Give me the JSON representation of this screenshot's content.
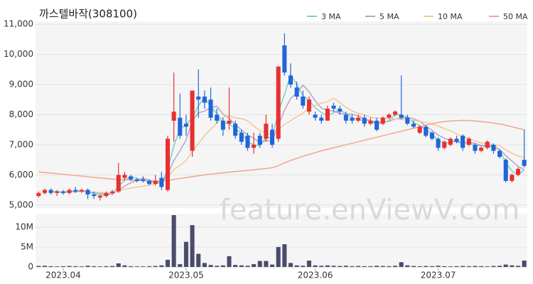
{
  "chart_data": [
    {
      "type": "candlestick",
      "title": "까스텔바작(308100)",
      "watermark": "feature.enViewV.com",
      "up_color": "#e8302f",
      "down_color": "#1f66d9",
      "grid": true,
      "categories": [
        null,
        null,
        null,
        null,
        null,
        null,
        null,
        null,
        null,
        null,
        null,
        null,
        null,
        null,
        null,
        null,
        null,
        null,
        null,
        null,
        null,
        null,
        null,
        null,
        null,
        null,
        null,
        null,
        null,
        null,
        null,
        null,
        null,
        null,
        null,
        null,
        null,
        null,
        null,
        null,
        null,
        null,
        null,
        null,
        null,
        null,
        null,
        null,
        null,
        null,
        null,
        null,
        null,
        null,
        null,
        null,
        null,
        null,
        null,
        null,
        null,
        null,
        null,
        null,
        null,
        null,
        null,
        null,
        null,
        null,
        null,
        null,
        null,
        null,
        null,
        null,
        null,
        null,
        null,
        null
      ],
      "open": [
        5300,
        5400,
        5500,
        5400,
        5450,
        5400,
        5500,
        5450,
        5500,
        5350,
        5250,
        5300,
        5400,
        5450,
        5900,
        5950,
        5850,
        5850,
        5800,
        5700,
        5900,
        5500,
        7800,
        7900,
        7700,
        6800,
        8600,
        8600,
        8500,
        8000,
        7800,
        7700,
        7700,
        7400,
        7300,
        6900,
        7300,
        7200,
        7500,
        7200,
        10300,
        9300,
        8900,
        8600,
        8100,
        8000,
        7900,
        7800,
        8300,
        8200,
        8000,
        7900,
        7800,
        7900,
        7700,
        7800,
        7700,
        7900,
        8000,
        8000,
        7900,
        7700,
        7400,
        7600,
        7400,
        7200,
        6900,
        7000,
        7200,
        7300,
        7000,
        7000,
        6800,
        6900,
        7000,
        6800,
        6500,
        5800,
        6000,
        6500
      ],
      "high": [
        5450,
        5550,
        5550,
        5500,
        5500,
        5550,
        5600,
        5550,
        5550,
        5450,
        5350,
        5450,
        5500,
        6400,
        6100,
        6000,
        5900,
        5950,
        5850,
        6000,
        6100,
        7300,
        9400,
        8700,
        8000,
        8800,
        9500,
        8800,
        8900,
        8200,
        7900,
        8900,
        7800,
        7500,
        7400,
        7400,
        7400,
        8000,
        7700,
        9600,
        10700,
        9700,
        9100,
        8800,
        8600,
        8100,
        8000,
        8300,
        8400,
        8300,
        8100,
        8000,
        8000,
        8000,
        7900,
        7900,
        7950,
        8050,
        8150,
        9300,
        8000,
        7800,
        7650,
        7650,
        7450,
        7250,
        7150,
        7250,
        7300,
        7350,
        7250,
        7050,
        6950,
        7150,
        7050,
        6850,
        6550,
        6050,
        6250,
        7500
      ],
      "low": [
        5250,
        5350,
        5350,
        5300,
        5350,
        5350,
        5400,
        5400,
        5200,
        5200,
        5150,
        5250,
        5350,
        5400,
        5800,
        5800,
        5750,
        5750,
        5650,
        5650,
        5500,
        5450,
        7100,
        7200,
        7300,
        6600,
        7900,
        8200,
        7800,
        7700,
        7300,
        7500,
        7200,
        7000,
        6800,
        6700,
        6900,
        7100,
        6900,
        7100,
        9300,
        8900,
        8500,
        8200,
        8000,
        7800,
        7700,
        7800,
        8100,
        8000,
        7700,
        7700,
        7750,
        7600,
        7650,
        7450,
        7650,
        7850,
        7950,
        7850,
        7650,
        7550,
        7350,
        7250,
        7150,
        6800,
        6850,
        6950,
        7050,
        6800,
        6950,
        6700,
        6750,
        6850,
        6700,
        6550,
        5750,
        5750,
        5950,
        6250
      ],
      "close": [
        5400,
        5500,
        5400,
        5450,
        5400,
        5500,
        5450,
        5500,
        5350,
        5300,
        5300,
        5400,
        5450,
        6000,
        6000,
        5850,
        5800,
        5800,
        5700,
        5800,
        5600,
        7200,
        8100,
        7300,
        7600,
        8800,
        8500,
        8400,
        7900,
        7800,
        7500,
        7800,
        7300,
        7100,
        6900,
        7000,
        7000,
        7700,
        7000,
        9600,
        9400,
        9000,
        8600,
        8300,
        8500,
        7900,
        7800,
        8200,
        8200,
        8100,
        7800,
        7800,
        7900,
        7700,
        7800,
        7500,
        7900,
        8000,
        8100,
        7900,
        7700,
        7600,
        7600,
        7300,
        7200,
        6900,
        7100,
        7200,
        7100,
        6900,
        7200,
        6800,
        6900,
        7100,
        6800,
        6600,
        5800,
        6000,
        6200,
        6300
      ],
      "series": [
        {
          "name": "3 MA",
          "color": "#72d2c8",
          "values": [
            null,
            null,
            5433,
            5450,
            5417,
            5450,
            5450,
            5483,
            5433,
            5383,
            5317,
            5333,
            5383,
            5617,
            5817,
            5950,
            5883,
            5817,
            5767,
            5767,
            5700,
            6200,
            6967,
            7533,
            7667,
            7900,
            8300,
            8567,
            8267,
            8033,
            7733,
            7700,
            7533,
            7400,
            7100,
            7000,
            6967,
            7233,
            7233,
            8100,
            8667,
            9333,
            9000,
            8633,
            8467,
            8233,
            8067,
            7967,
            8067,
            8167,
            8033,
            7900,
            7833,
            7800,
            7800,
            7667,
            7733,
            7800,
            8000,
            8000,
            7900,
            7733,
            7633,
            7500,
            7367,
            7133,
            7067,
            7067,
            7133,
            7067,
            7067,
            6967,
            6967,
            6933,
            6933,
            6833,
            6400,
            6133,
            6000,
            6167
          ]
        },
        {
          "name": "5 MA",
          "color": "#b7a1cc",
          "values": [
            null,
            null,
            null,
            null,
            5430,
            5450,
            5440,
            5460,
            5440,
            5420,
            5380,
            5370,
            5360,
            5490,
            5630,
            5740,
            5820,
            5890,
            5830,
            5790,
            5740,
            6020,
            6480,
            6800,
            7160,
            7800,
            8060,
            8120,
            8240,
            8280,
            8020,
            7880,
            7660,
            7500,
            7320,
            7220,
            7060,
            7140,
            7120,
            7660,
            8140,
            8540,
            8720,
            8980,
            8760,
            8460,
            8220,
            8140,
            8120,
            8040,
            8020,
            8020,
            7960,
            7860,
            7800,
            7740,
            7760,
            7780,
            7860,
            7880,
            7920,
            7860,
            7780,
            7620,
            7480,
            7320,
            7220,
            7140,
            7100,
            7040,
            7100,
            7040,
            6980,
            6980,
            6960,
            6840,
            6640,
            6460,
            6280,
            6180
          ]
        },
        {
          "name": "10 MA",
          "color": "#f3c994",
          "values": [
            null,
            null,
            null,
            null,
            null,
            null,
            null,
            null,
            null,
            5425,
            5415,
            5405,
            5410,
            5465,
            5525,
            5560,
            5595,
            5625,
            5660,
            5710,
            5740,
            5920,
            6185,
            6315,
            6475,
            6770,
            7040,
            7300,
            7520,
            7720,
            7910,
            7970,
            7890,
            7870,
            7800,
            7620,
            7470,
            7400,
            7310,
            7490,
            7680,
            7800,
            7930,
            8050,
            8210,
            8300,
            8380,
            8430,
            8550,
            8400,
            8240,
            8120,
            8050,
            7990,
            7920,
            7880,
            7890,
            7870,
            7860,
            7840,
            7830,
            7810,
            7780,
            7740,
            7680,
            7620,
            7540,
            7460,
            7360,
            7260,
            7210,
            7130,
            7060,
            7040,
            7000,
            6970,
            6840,
            6720,
            6630,
            6570
          ]
        },
        {
          "name": "50 MA",
          "color": "#f2a590",
          "values": [
            6100,
            6080,
            6060,
            6040,
            6020,
            6000,
            5980,
            5960,
            5940,
            5920,
            5900,
            5880,
            5860,
            5850,
            5840,
            5830,
            5820,
            5810,
            5800,
            5800,
            5800,
            5820,
            5850,
            5880,
            5910,
            5940,
            5970,
            6000,
            6030,
            6050,
            6070,
            6090,
            6110,
            6130,
            6150,
            6170,
            6190,
            6210,
            6240,
            6300,
            6400,
            6480,
            6550,
            6620,
            6680,
            6740,
            6800,
            6850,
            6900,
            6950,
            7000,
            7050,
            7100,
            7150,
            7200,
            7250,
            7300,
            7350,
            7400,
            7450,
            7500,
            7550,
            7600,
            7650,
            7700,
            7740,
            7770,
            7790,
            7800,
            7810,
            7800,
            7790,
            7770,
            7750,
            7720,
            7690,
            7650,
            7600,
            7550,
            7500
          ]
        }
      ],
      "ylim": [
        4900,
        11100
      ],
      "yticks": [
        {
          "value": 5000,
          "label": "5,000"
        },
        {
          "value": 6000,
          "label": "6,000"
        },
        {
          "value": 7000,
          "label": "7,000"
        },
        {
          "value": 8000,
          "label": "8,000"
        },
        {
          "value": 9000,
          "label": "9,000"
        },
        {
          "value": 10000,
          "label": "10,000"
        },
        {
          "value": 11000,
          "label": "11,000"
        }
      ]
    },
    {
      "type": "bar",
      "color": "#4a4c6c",
      "grid": true,
      "values": [
        250000,
        300000,
        200000,
        150000,
        200000,
        250000,
        200000,
        150000,
        300000,
        200000,
        150000,
        200000,
        250000,
        900000,
        400000,
        200000,
        150000,
        150000,
        200000,
        250000,
        400000,
        1800000,
        13000000,
        700000,
        6300000,
        10500000,
        3300000,
        1000000,
        500000,
        300000,
        400000,
        2700000,
        500000,
        400000,
        300000,
        700000,
        1500000,
        1500000,
        600000,
        5000000,
        5700000,
        1000000,
        400000,
        300000,
        1600000,
        400000,
        300000,
        400000,
        300000,
        250000,
        300000,
        200000,
        250000,
        200000,
        200000,
        300000,
        250000,
        200000,
        300000,
        1200000,
        400000,
        250000,
        200000,
        250000,
        200000,
        300000,
        200000,
        150000,
        200000,
        250000,
        200000,
        250000,
        200000,
        150000,
        250000,
        300000,
        600000,
        400000,
        300000,
        1600000
      ],
      "ylim": [
        0,
        13000000
      ],
      "yticks": [
        0,
        {
          "value": 5000000,
          "label": "5M"
        },
        {
          "value": 10000000,
          "label": "10M"
        }
      ],
      "xlim": [
        -0.5,
        79.5
      ],
      "xticks": [
        {
          "value": 4,
          "label": "2023.04"
        },
        {
          "value": 24,
          "label": "2023.05"
        },
        {
          "value": 45,
          "label": "2023.06"
        },
        {
          "value": 65,
          "label": "2023.07"
        }
      ]
    }
  ]
}
